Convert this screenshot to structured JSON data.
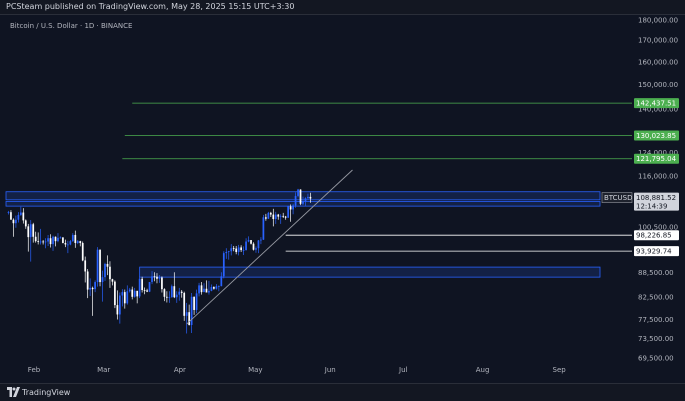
{
  "header": {
    "publisher_text": "PCSteam published on TradingView.com, May 28, 2025 15:15 UTC+3:30",
    "symbol_title": "Bitcoin / U.S. Dollar · 1D · BINANCE"
  },
  "footer": {
    "brand": "TradingView",
    "logo_icon": "tradingview-logo-icon"
  },
  "colors": {
    "background": "#0f1422",
    "up_candle": "#2962ff",
    "down_candle": "#ffffff",
    "level_line": "#4caf50",
    "support_line": "#ffffff",
    "zone_fill": "#1e3a8a",
    "zone_border": "#2962ff",
    "trendline": "#9598a1"
  },
  "chart_data": {
    "type": "candlestick",
    "symbol": "BTCUSD",
    "interval": "1D",
    "exchange": "BINANCE",
    "y_axis": {
      "scale": "log",
      "range": [
        65000,
        183000
      ],
      "ticks": [
        "180,000.00",
        "170,000.00",
        "160,000.00",
        "150,000.00",
        "140,000.00",
        "124,000.00",
        "116,000.00",
        "100,500.00",
        "88,500.00",
        "82,500.00",
        "77,500.00",
        "73,500.00",
        "69,500.00"
      ]
    },
    "x_axis": {
      "range": [
        "2025-01-24",
        "2025-09-21"
      ],
      "ticks": [
        {
          "label": "Feb",
          "date": "2025-02-01"
        },
        {
          "label": "Mar",
          "date": "2025-03-01"
        },
        {
          "label": "Apr",
          "date": "2025-04-01"
        },
        {
          "label": "May",
          "date": "2025-05-01"
        },
        {
          "label": "Jun",
          "date": "2025-06-01"
        },
        {
          "label": "Jul",
          "date": "2025-07-01"
        },
        {
          "label": "Aug",
          "date": "2025-08-01"
        },
        {
          "label": "Sep",
          "date": "2025-09-01"
        }
      ]
    },
    "current_price": {
      "symbol_label": "BTCUSD",
      "price": "108,881.52",
      "countdown": "12:14:39"
    },
    "resistance_levels": [
      {
        "value": 142437.51,
        "label": "142,437.51",
        "from": "2025-03-16"
      },
      {
        "value": 130023.85,
        "label": "130,023.85",
        "from": "2025-03-13"
      },
      {
        "value": 121795.04,
        "label": "121,795.04",
        "from": "2025-03-12"
      }
    ],
    "support_levels": [
      {
        "value": 98226.85,
        "label": "98,226.85",
        "from": "2025-05-17"
      },
      {
        "value": 93929.74,
        "label": "93,929.74",
        "from": "2025-05-17"
      }
    ],
    "zones": [
      {
        "top": 111000,
        "bottom": 108500,
        "from": "2025-01-24",
        "to": "2025-09-21"
      },
      {
        "top": 108000,
        "bottom": 106600,
        "from": "2025-01-24",
        "to": "2025-09-21"
      },
      {
        "top": 89800,
        "bottom": 87300,
        "from": "2025-03-19",
        "to": "2025-09-21"
      }
    ],
    "trendline": {
      "from": {
        "date": "2025-04-07",
        "value": 76500
      },
      "to": {
        "date": "2025-06-13",
        "value": 118000
      }
    },
    "candles": [
      [
        "2025-01-25",
        104700,
        105200,
        104100,
        104800
      ],
      [
        "2025-01-26",
        104800,
        105400,
        102800,
        102600
      ],
      [
        "2025-01-27",
        102600,
        103000,
        97800,
        101600
      ],
      [
        "2025-01-28",
        101600,
        103800,
        100300,
        102600
      ],
      [
        "2025-01-29",
        102600,
        104800,
        101800,
        104000
      ],
      [
        "2025-01-30",
        104000,
        106400,
        103700,
        104700
      ],
      [
        "2025-01-31",
        104700,
        106000,
        101500,
        102400
      ],
      [
        "2025-02-01",
        102400,
        102700,
        100000,
        100700
      ],
      [
        "2025-02-02",
        100700,
        101400,
        93800,
        97700
      ],
      [
        "2025-02-03",
        97700,
        102500,
        91200,
        101300
      ],
      [
        "2025-02-04",
        101300,
        101700,
        96200,
        97800
      ],
      [
        "2025-02-05",
        97800,
        99200,
        96200,
        96600
      ],
      [
        "2025-02-06",
        96600,
        99000,
        95700,
        96500
      ],
      [
        "2025-02-07",
        96500,
        100000,
        95700,
        96500
      ],
      [
        "2025-02-08",
        96500,
        96900,
        95700,
        96400
      ],
      [
        "2025-02-09",
        96400,
        97400,
        94700,
        96500
      ],
      [
        "2025-02-10",
        96500,
        98300,
        95300,
        97400
      ],
      [
        "2025-02-11",
        97400,
        98500,
        94900,
        95800
      ],
      [
        "2025-02-12",
        95800,
        98100,
        94000,
        97800
      ],
      [
        "2025-02-13",
        97800,
        97900,
        95200,
        96600
      ],
      [
        "2025-02-14",
        96600,
        98800,
        96300,
        97500
      ],
      [
        "2025-02-15",
        97500,
        97900,
        97300,
        97600
      ],
      [
        "2025-02-16",
        97600,
        97700,
        96000,
        96100
      ],
      [
        "2025-02-17",
        96100,
        97000,
        95000,
        95700
      ],
      [
        "2025-02-18",
        95700,
        96700,
        93400,
        95700
      ],
      [
        "2025-02-19",
        95700,
        96900,
        95500,
        96600
      ],
      [
        "2025-02-20",
        96600,
        98800,
        96400,
        98300
      ],
      [
        "2025-02-21",
        98300,
        99500,
        94800,
        96100
      ],
      [
        "2025-02-22",
        96100,
        96900,
        95800,
        96600
      ],
      [
        "2025-02-23",
        96600,
        96700,
        95200,
        96100
      ],
      [
        "2025-02-24",
        96100,
        96500,
        91300,
        91500
      ],
      [
        "2025-02-25",
        91500,
        92500,
        86000,
        88700
      ],
      [
        "2025-02-26",
        88700,
        89300,
        82300,
        84300
      ],
      [
        "2025-02-27",
        84300,
        87000,
        82800,
        84700
      ],
      [
        "2025-02-28",
        84700,
        85000,
        78300,
        84400
      ],
      [
        "2025-03-01",
        84400,
        86500,
        83700,
        86100
      ],
      [
        "2025-03-02",
        86100,
        95000,
        85000,
        94300
      ],
      [
        "2025-03-03",
        94300,
        94400,
        85100,
        86100
      ],
      [
        "2025-03-04",
        86100,
        88900,
        81500,
        87300
      ],
      [
        "2025-03-05",
        87300,
        90900,
        86400,
        90600
      ],
      [
        "2025-03-06",
        90600,
        92800,
        87800,
        89900
      ],
      [
        "2025-03-07",
        89900,
        91300,
        84700,
        86800
      ],
      [
        "2025-03-08",
        86800,
        86900,
        85300,
        86200
      ],
      [
        "2025-03-09",
        86200,
        86500,
        80000,
        80700
      ],
      [
        "2025-03-10",
        80700,
        84100,
        77500,
        78600
      ],
      [
        "2025-03-11",
        78600,
        83600,
        76600,
        82900
      ],
      [
        "2025-03-12",
        82900,
        84400,
        80400,
        83700
      ],
      [
        "2025-03-13",
        83700,
        84300,
        79900,
        81100
      ],
      [
        "2025-03-14",
        81100,
        85300,
        80800,
        83900
      ],
      [
        "2025-03-15",
        83900,
        84700,
        83600,
        84300
      ],
      [
        "2025-03-16",
        84300,
        85000,
        82000,
        82600
      ],
      [
        "2025-03-17",
        82600,
        84700,
        82400,
        84000
      ],
      [
        "2025-03-18",
        84000,
        84000,
        81100,
        82700
      ],
      [
        "2025-03-19",
        82700,
        87500,
        82300,
        86900
      ],
      [
        "2025-03-20",
        86900,
        87400,
        83600,
        84200
      ],
      [
        "2025-03-21",
        84200,
        84800,
        83200,
        84100
      ],
      [
        "2025-03-22",
        84100,
        84500,
        83700,
        83800
      ],
      [
        "2025-03-23",
        83800,
        86100,
        83700,
        86100
      ],
      [
        "2025-03-24",
        86100,
        88800,
        85600,
        87500
      ],
      [
        "2025-03-25",
        87500,
        88500,
        86300,
        87400
      ],
      [
        "2025-03-26",
        87400,
        88300,
        85800,
        86900
      ],
      [
        "2025-03-27",
        86900,
        87800,
        85900,
        87200
      ],
      [
        "2025-03-28",
        87200,
        87500,
        83600,
        84400
      ],
      [
        "2025-03-29",
        84400,
        84600,
        81600,
        82600
      ],
      [
        "2025-03-30",
        82600,
        83900,
        81300,
        82400
      ],
      [
        "2025-03-31",
        82400,
        83900,
        81200,
        82500
      ],
      [
        "2025-04-01",
        82500,
        85500,
        82400,
        85100
      ],
      [
        "2025-04-02",
        85100,
        88500,
        82300,
        82500
      ],
      [
        "2025-04-03",
        82500,
        83900,
        81200,
        83100
      ],
      [
        "2025-04-04",
        83100,
        84700,
        81700,
        83800
      ],
      [
        "2025-04-05",
        83800,
        84200,
        82400,
        83500
      ],
      [
        "2025-04-06",
        83500,
        83800,
        77200,
        78300
      ],
      [
        "2025-04-07",
        78300,
        81200,
        74500,
        79100
      ],
      [
        "2025-04-08",
        79100,
        80800,
        76200,
        76300
      ],
      [
        "2025-04-09",
        76300,
        83500,
        74600,
        82600
      ],
      [
        "2025-04-10",
        82600,
        82700,
        78500,
        79600
      ],
      [
        "2025-04-11",
        79600,
        84300,
        78900,
        83400
      ],
      [
        "2025-04-12",
        83400,
        85900,
        82700,
        85300
      ],
      [
        "2025-04-13",
        85300,
        86100,
        83100,
        83700
      ],
      [
        "2025-04-14",
        83700,
        85800,
        83700,
        84500
      ],
      [
        "2025-04-15",
        84500,
        86500,
        83600,
        83600
      ],
      [
        "2025-04-16",
        83600,
        86400,
        83100,
        84000
      ],
      [
        "2025-04-17",
        84000,
        85500,
        83900,
        84900
      ],
      [
        "2025-04-18",
        84900,
        85100,
        84300,
        84500
      ],
      [
        "2025-04-19",
        84500,
        85600,
        84300,
        85100
      ],
      [
        "2025-04-20",
        85100,
        85300,
        83900,
        85100
      ],
      [
        "2025-04-21",
        85100,
        88500,
        85100,
        87500
      ],
      [
        "2025-04-22",
        87500,
        93900,
        87000,
        93400
      ],
      [
        "2025-04-23",
        93400,
        94700,
        91900,
        93700
      ],
      [
        "2025-04-24",
        93700,
        94000,
        91700,
        93900
      ],
      [
        "2025-04-25",
        93900,
        95800,
        92800,
        94700
      ],
      [
        "2025-04-26",
        94700,
        95300,
        93900,
        94600
      ],
      [
        "2025-04-27",
        94600,
        95300,
        93100,
        93700
      ],
      [
        "2025-04-28",
        93700,
        95600,
        92800,
        94900
      ],
      [
        "2025-04-29",
        94900,
        95500,
        93700,
        94200
      ],
      [
        "2025-04-30",
        94200,
        95200,
        92900,
        94200
      ],
      [
        "2025-05-01",
        94200,
        97400,
        94100,
        96500
      ],
      [
        "2025-05-02",
        96500,
        97900,
        96300,
        96900
      ],
      [
        "2025-05-03",
        96900,
        96900,
        95700,
        95900
      ],
      [
        "2025-05-04",
        95900,
        96300,
        94100,
        94300
      ],
      [
        "2025-05-05",
        94300,
        95200,
        93500,
        94700
      ],
      [
        "2025-05-06",
        94700,
        96900,
        93400,
        96800
      ],
      [
        "2025-05-07",
        96800,
        97700,
        95800,
        97000
      ],
      [
        "2025-05-08",
        97000,
        104000,
        96900,
        103300
      ],
      [
        "2025-05-09",
        103300,
        104300,
        102300,
        102900
      ],
      [
        "2025-05-10",
        102900,
        104900,
        102800,
        104600
      ],
      [
        "2025-05-11",
        104600,
        104900,
        103400,
        104100
      ],
      [
        "2025-05-12",
        104100,
        105800,
        100700,
        102800
      ],
      [
        "2025-05-13",
        102800,
        104900,
        101400,
        104100
      ],
      [
        "2025-05-14",
        104100,
        104300,
        102600,
        103500
      ],
      [
        "2025-05-15",
        103500,
        104200,
        101400,
        103700
      ],
      [
        "2025-05-16",
        103700,
        104600,
        103100,
        103500
      ],
      [
        "2025-05-17",
        103500,
        103700,
        102600,
        103200
      ],
      [
        "2025-05-18",
        103200,
        106700,
        103100,
        106500
      ],
      [
        "2025-05-19",
        106500,
        107100,
        102000,
        105600
      ],
      [
        "2025-05-20",
        105600,
        107300,
        104200,
        106800
      ],
      [
        "2025-05-21",
        106800,
        110800,
        106100,
        109700
      ],
      [
        "2025-05-22",
        109700,
        111900,
        109300,
        111700
      ],
      [
        "2025-05-23",
        111700,
        111800,
        106900,
        107300
      ],
      [
        "2025-05-24",
        107300,
        109500,
        106900,
        108000
      ],
      [
        "2025-05-25",
        108000,
        109300,
        106700,
        109000
      ],
      [
        "2025-05-26",
        109000,
        110400,
        108700,
        109400
      ],
      [
        "2025-05-27",
        109400,
        110700,
        107600,
        108900
      ]
    ]
  }
}
